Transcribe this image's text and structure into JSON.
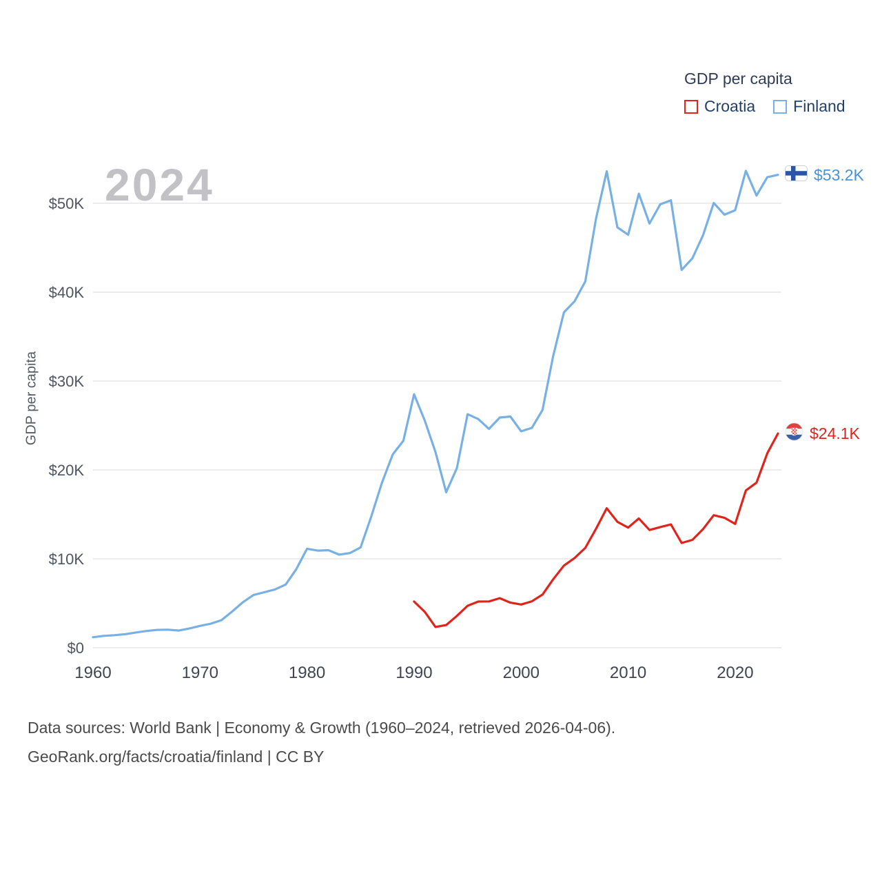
{
  "legend": {
    "title": "GDP per capita",
    "items": [
      {
        "label": "Croatia",
        "color": "#e0231b"
      },
      {
        "label": "Finland",
        "color": "#77b0e4"
      }
    ]
  },
  "watermark_year": "2024",
  "y_axis": {
    "title": "GDP per capita",
    "ticks": [
      "$0",
      "$10K",
      "$20K",
      "$30K",
      "$40K",
      "$50K"
    ],
    "tick_values_k": [
      0,
      10,
      20,
      30,
      40,
      50
    ]
  },
  "x_axis": {
    "ticks": [
      "1960",
      "1970",
      "1980",
      "1990",
      "2000",
      "2010",
      "2020"
    ]
  },
  "endpoints": {
    "finland": {
      "label": "$53.2K",
      "icon": "finland-flag-icon",
      "color": "#4793d6"
    },
    "croatia": {
      "label": "$24.1K",
      "icon": "croatia-flag-icon",
      "color": "#e0231b"
    }
  },
  "footer": {
    "line1": "Data sources: World Bank | Economy & Growth (1960–2024, retrieved 2026-04-06).",
    "line2": "GeoRank.org/facts/croatia/finland | CC BY"
  },
  "chart_data": {
    "type": "line",
    "title": "GDP per capita",
    "xlabel": "",
    "ylabel": "GDP per capita",
    "units": "USD thousands",
    "x_range": [
      1960,
      2024
    ],
    "ylim_k": [
      0,
      55
    ],
    "grid": "horizontal",
    "legend_position": "top-right",
    "series": [
      {
        "name": "Finland",
        "color": "#77b0e4",
        "years": [
          1960,
          1961,
          1962,
          1963,
          1964,
          1965,
          1966,
          1967,
          1968,
          1969,
          1970,
          1971,
          1972,
          1973,
          1974,
          1975,
          1976,
          1977,
          1978,
          1979,
          1980,
          1981,
          1982,
          1983,
          1984,
          1985,
          1986,
          1987,
          1988,
          1989,
          1990,
          1991,
          1992,
          1993,
          1994,
          1995,
          1996,
          1997,
          1998,
          1999,
          2000,
          2001,
          2002,
          2003,
          2004,
          2005,
          2006,
          2007,
          2008,
          2009,
          2010,
          2011,
          2012,
          2013,
          2014,
          2015,
          2016,
          2017,
          2018,
          2019,
          2020,
          2021,
          2022,
          2023,
          2024
        ],
        "values_k": [
          1.18,
          1.33,
          1.41,
          1.52,
          1.71,
          1.88,
          2.01,
          2.03,
          1.93,
          2.16,
          2.46,
          2.7,
          3.1,
          4.07,
          5.11,
          5.94,
          6.24,
          6.56,
          7.11,
          8.85,
          11.13,
          10.92,
          10.97,
          10.47,
          10.65,
          11.28,
          14.77,
          18.56,
          21.74,
          23.29,
          28.51,
          25.54,
          22.01,
          17.49,
          20.22,
          26.27,
          25.72,
          24.62,
          25.89,
          26.01,
          24.35,
          24.73,
          26.74,
          32.82,
          37.73,
          38.97,
          41.21,
          48.29,
          53.6,
          47.29,
          46.46,
          51.08,
          47.72,
          49.88,
          50.33,
          42.5,
          43.81,
          46.41,
          50.03,
          48.71,
          49.22,
          53.65,
          50.87,
          52.93,
          53.2
        ]
      },
      {
        "name": "Croatia",
        "color": "#e0231b",
        "years": [
          1990,
          1991,
          1992,
          1993,
          1994,
          1995,
          1996,
          1997,
          1998,
          1999,
          2000,
          2001,
          2002,
          2003,
          2004,
          2005,
          2006,
          2007,
          2008,
          2009,
          2010,
          2011,
          2012,
          2013,
          2014,
          2015,
          2016,
          2017,
          2018,
          2019,
          2020,
          2021,
          2022,
          2023,
          2024
        ],
        "values_k": [
          5.19,
          4.03,
          2.33,
          2.55,
          3.58,
          4.72,
          5.19,
          5.21,
          5.57,
          5.07,
          4.86,
          5.22,
          5.98,
          7.7,
          9.24,
          10.09,
          11.23,
          13.38,
          15.69,
          14.16,
          13.51,
          14.54,
          13.24,
          13.57,
          13.87,
          11.78,
          12.13,
          13.34,
          14.91,
          14.62,
          13.93,
          17.69,
          18.57,
          21.87,
          24.1
        ]
      }
    ]
  }
}
